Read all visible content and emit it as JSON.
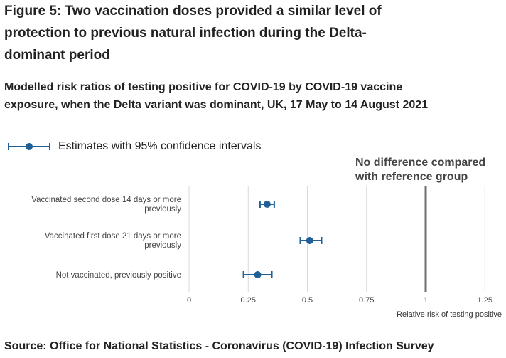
{
  "title": "Figure 5: Two vaccination doses provided a similar level of protection to previous natural infection during the Delta-dominant period",
  "subtitle": "Modelled risk ratios of testing positive for COVID-19 by COVID-19 vaccine exposure, when the Delta variant was dominant, UK, 17 May to 14 August 2021",
  "source": "Source: Office for National Statistics - Coronavirus (COVID-19) Infection Survey",
  "colors": {
    "marker": "#206095",
    "reference_line": "#707070",
    "grid": "#d9d9d9"
  },
  "chart_data": {
    "type": "scatter",
    "title": "Modelled risk ratios of testing positive for COVID-19 by COVID-19 vaccine exposure",
    "xlabel": "Relative risk of testing positive",
    "ylabel": "",
    "xlim": [
      0,
      1.3
    ],
    "xticks": [
      0,
      0.25,
      0.5,
      0.75,
      1,
      1.25
    ],
    "xtick_labels": [
      "0",
      "0.25",
      "0.5",
      "0.75",
      "1",
      "1.25"
    ],
    "legend": {
      "label": "Estimates with 95% confidence intervals",
      "position": "top-left"
    },
    "reference": {
      "value": 1,
      "label_lines": [
        "No difference compared",
        "with reference group"
      ]
    },
    "categories": [
      {
        "label_lines": [
          "Vaccinated second dose 14 days or more",
          "previously"
        ],
        "estimate": 0.33,
        "lower": 0.3,
        "upper": 0.36
      },
      {
        "label_lines": [
          "Vaccinated first dose 21 days or more",
          "previously"
        ],
        "estimate": 0.51,
        "lower": 0.47,
        "upper": 0.56
      },
      {
        "label_lines": [
          "Not vaccinated, previously positive"
        ],
        "estimate": 0.29,
        "lower": 0.23,
        "upper": 0.35
      }
    ]
  }
}
